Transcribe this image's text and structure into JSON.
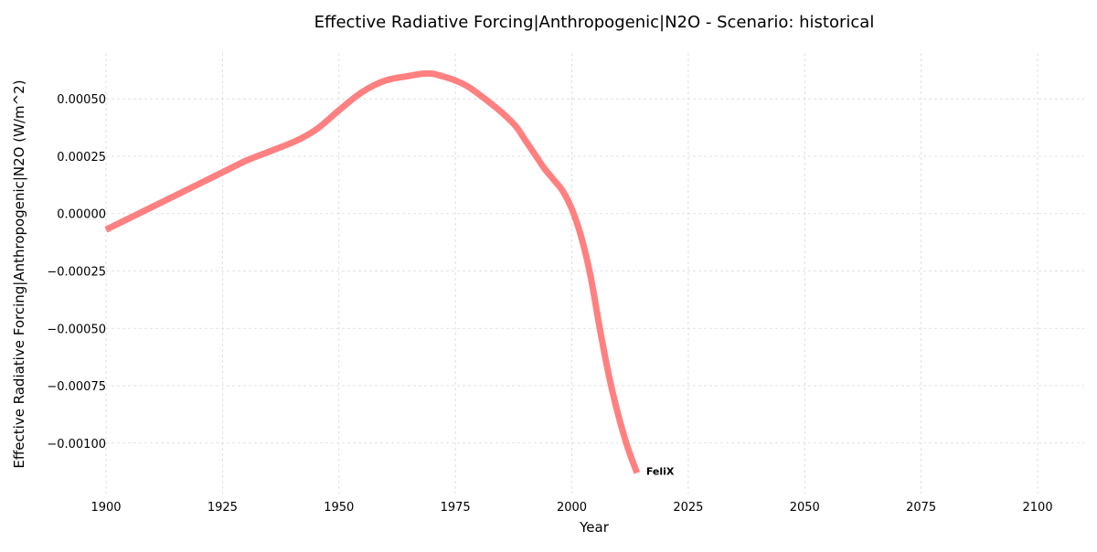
{
  "chart_data": {
    "type": "line",
    "title": "Effective Radiative Forcing|Anthropogenic|N2O - Scenario: historical",
    "xlabel": "Year",
    "ylabel": "Effective Radiative Forcing|Anthropogenic|N2O (W/m^2)",
    "xlim": [
      1900,
      2110
    ],
    "ylim": [
      -0.00122,
      0.0007
    ],
    "x_ticks": [
      1900,
      1925,
      1950,
      1975,
      2000,
      2025,
      2050,
      2075,
      2100
    ],
    "x_tick_labels": [
      "1900",
      "1925",
      "1950",
      "1975",
      "2000",
      "2025",
      "2050",
      "2075",
      "2100"
    ],
    "y_ticks": [
      0.0005,
      0.00025,
      0.0,
      -0.00025,
      -0.0005,
      -0.00075,
      -0.001
    ],
    "y_tick_labels": [
      "0.00050",
      "0.00025",
      "0.00000",
      "−0.00025",
      "−0.00050",
      "−0.00075",
      "−0.00100"
    ],
    "grid": true,
    "legend": "none",
    "series": [
      {
        "name": "FeliX",
        "color": "#ff8080",
        "x": [
          1900,
          1905,
          1910,
          1915,
          1920,
          1925,
          1930,
          1935,
          1940,
          1943,
          1946,
          1950,
          1955,
          1960,
          1965,
          1968,
          1970,
          1972,
          1975,
          1978,
          1982,
          1985,
          1988,
          1990,
          1992,
          1994,
          1996,
          1998,
          2000,
          2002,
          2004,
          2006,
          2008,
          2010,
          2012,
          2014
        ],
        "y": [
          -7e-05,
          -2e-05,
          3e-05,
          8e-05,
          0.00013,
          0.00018,
          0.00023,
          0.00027,
          0.00031,
          0.00034,
          0.00038,
          0.00045,
          0.00053,
          0.00058,
          0.0006,
          0.00061,
          0.00061,
          0.0006,
          0.00058,
          0.00055,
          0.00049,
          0.00044,
          0.00038,
          0.00032,
          0.00026,
          0.0002,
          0.00015,
          0.0001,
          2e-05,
          -0.0001,
          -0.00027,
          -0.0005,
          -0.00071,
          -0.00088,
          -0.00102,
          -0.00113
        ]
      }
    ]
  }
}
